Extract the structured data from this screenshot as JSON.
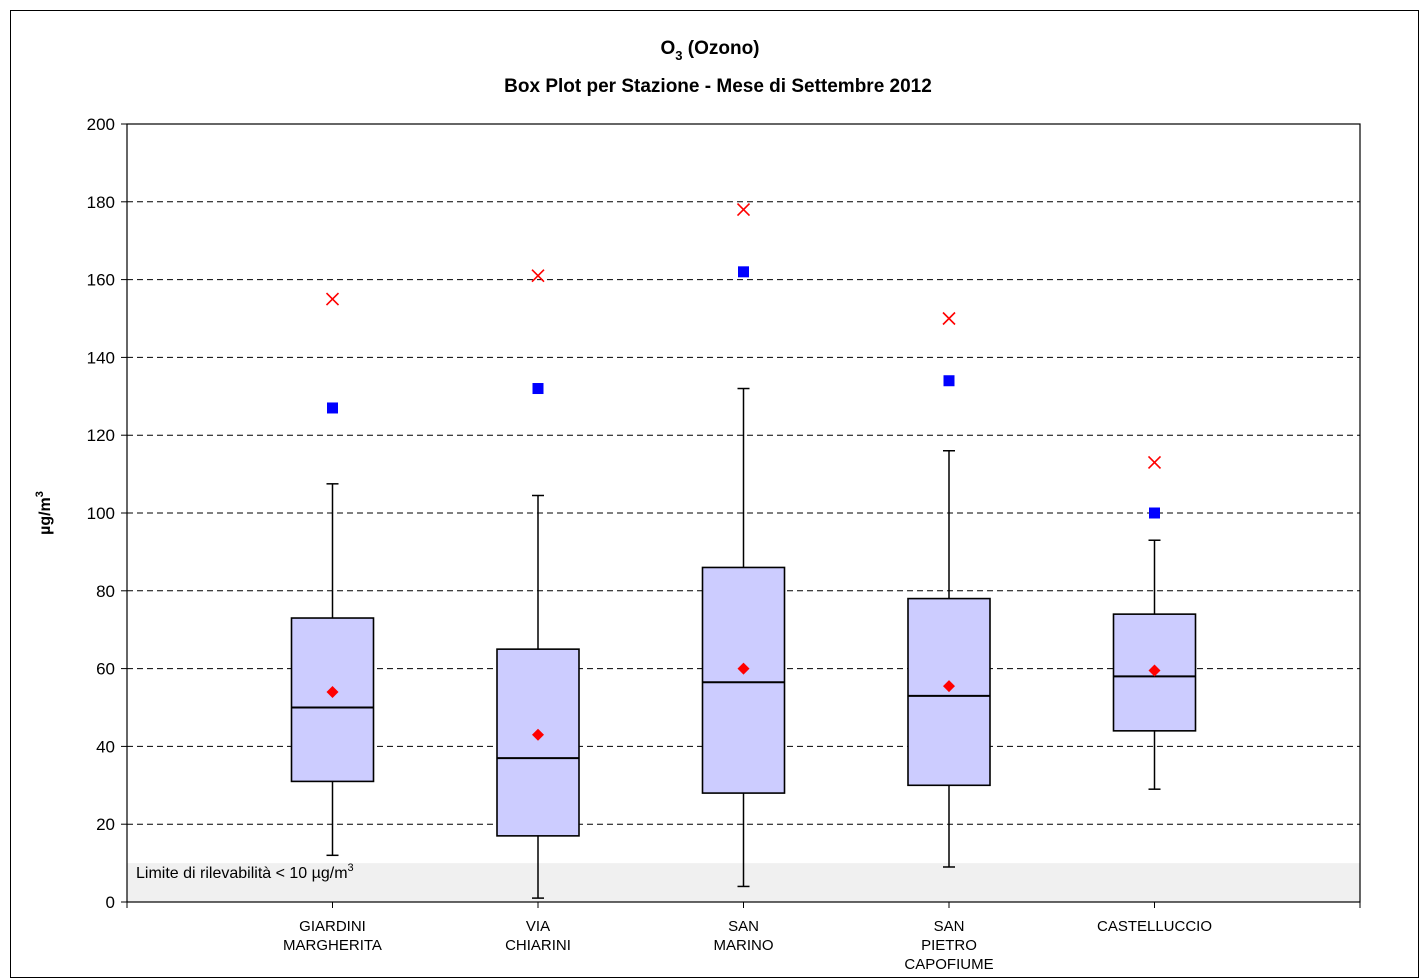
{
  "chart_data": {
    "type": "boxplot",
    "title_line1_main": "O",
    "title_line1_sub": "3",
    "title_line1_rest": " (Ozono)",
    "title_line2": "Box Plot per Stazione - Mese di Settembre 2012",
    "ylabel_main": "µg/m",
    "ylabel_sup": "3",
    "ylim": [
      0,
      200
    ],
    "yticks": [
      "0",
      "20",
      "40",
      "60",
      "80",
      "100",
      "120",
      "140",
      "160",
      "180",
      "200"
    ],
    "grid": "dashed horizontal",
    "detection_limit": {
      "value": 10,
      "label": "Limite di rilevabilità < 10 µg/m",
      "label_sup": "3"
    },
    "colors": {
      "box": "#ccccff",
      "mean": "#ff0000",
      "blue_marker": "#0000ff",
      "max_marker": "#ff0000",
      "limit_band": "#f0f0f0"
    },
    "stations": [
      {
        "label": [
          "GIARDINI",
          "MARGHERITA"
        ],
        "whisker_low": 12,
        "q1": 31,
        "median": 50,
        "q3": 73,
        "whisker_high": 107.5,
        "mean": 54,
        "blue": 127,
        "max": 155
      },
      {
        "label": [
          "VIA",
          "CHIARINI"
        ],
        "whisker_low": 1,
        "q1": 17,
        "median": 37,
        "q3": 65,
        "whisker_high": 104.5,
        "mean": 43,
        "blue": 132,
        "max": 161
      },
      {
        "label": [
          "SAN",
          "MARINO"
        ],
        "whisker_low": 4,
        "q1": 28,
        "median": 56.5,
        "q3": 86,
        "whisker_high": 132,
        "mean": 60,
        "blue": 162,
        "max": 178
      },
      {
        "label": [
          "SAN",
          "PIETRO",
          "CAPOFIUME"
        ],
        "whisker_low": 9,
        "q1": 30,
        "median": 53,
        "q3": 78,
        "whisker_high": 116,
        "mean": 55.5,
        "blue": 134,
        "max": 150
      },
      {
        "label": [
          "CASTELLUCCIO"
        ],
        "whisker_low": 29,
        "q1": 44,
        "median": 58,
        "q3": 74,
        "whisker_high": 93,
        "mean": 59.5,
        "blue": 100,
        "max": 113
      }
    ]
  }
}
